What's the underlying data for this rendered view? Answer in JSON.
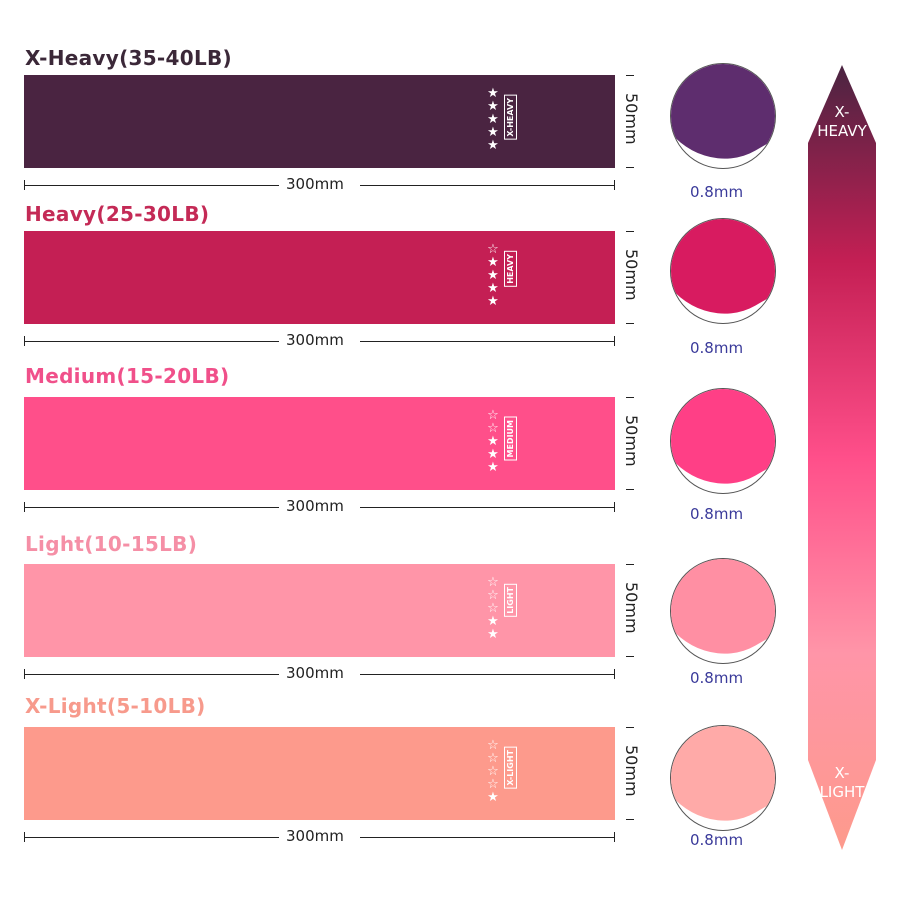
{
  "bands": [
    {
      "title": "X-Heavy(35-40LB)",
      "title_color": "#3b2838",
      "color": "#4a2441",
      "fold": "#5e2d6e",
      "tag": "X-HEAVY",
      "stars_filled": 5,
      "stars_total": 5,
      "width_label": "50mm",
      "length_label": "300mm",
      "thickness": "0.8mm"
    },
    {
      "title": "Heavy(25-30LB)",
      "title_color": "#c42a56",
      "color": "#c41f54",
      "fold": "#d81b60",
      "tag": "HEAVY",
      "stars_filled": 4,
      "stars_total": 5,
      "width_label": "50mm",
      "length_label": "300mm",
      "thickness": "0.8mm"
    },
    {
      "title": "Medium(15-20LB)",
      "title_color": "#f0508a",
      "color": "#ff4f8a",
      "fold": "#ff3f86",
      "tag": "MEDIUM",
      "stars_filled": 3,
      "stars_total": 5,
      "width_label": "50mm",
      "length_label": "300mm",
      "thickness": "0.8mm"
    },
    {
      "title": "Light(10-15LB)",
      "title_color": "#f58fa6",
      "color": "#ff95a8",
      "fold": "#ff8fa3",
      "tag": "LIGHT",
      "stars_filled": 2,
      "stars_total": 5,
      "width_label": "50mm",
      "length_label": "300mm",
      "thickness": "0.8mm"
    },
    {
      "title": "X-Light(5-10LB)",
      "title_color": "#f79a8c",
      "color": "#fd9a8c",
      "fold": "#ffaaa8",
      "tag": "X-LIGHT",
      "stars_filled": 1,
      "stars_total": 5,
      "width_label": "50mm",
      "length_label": "300mm",
      "thickness": "0.8mm"
    }
  ],
  "scale": {
    "top_label": "X-\nHEAVY",
    "bottom_label": "X-\nLIGHT",
    "gradient": [
      "#4a2441",
      "#c41f54",
      "#ff4f8a",
      "#ff95a8",
      "#fd9a8c"
    ]
  }
}
